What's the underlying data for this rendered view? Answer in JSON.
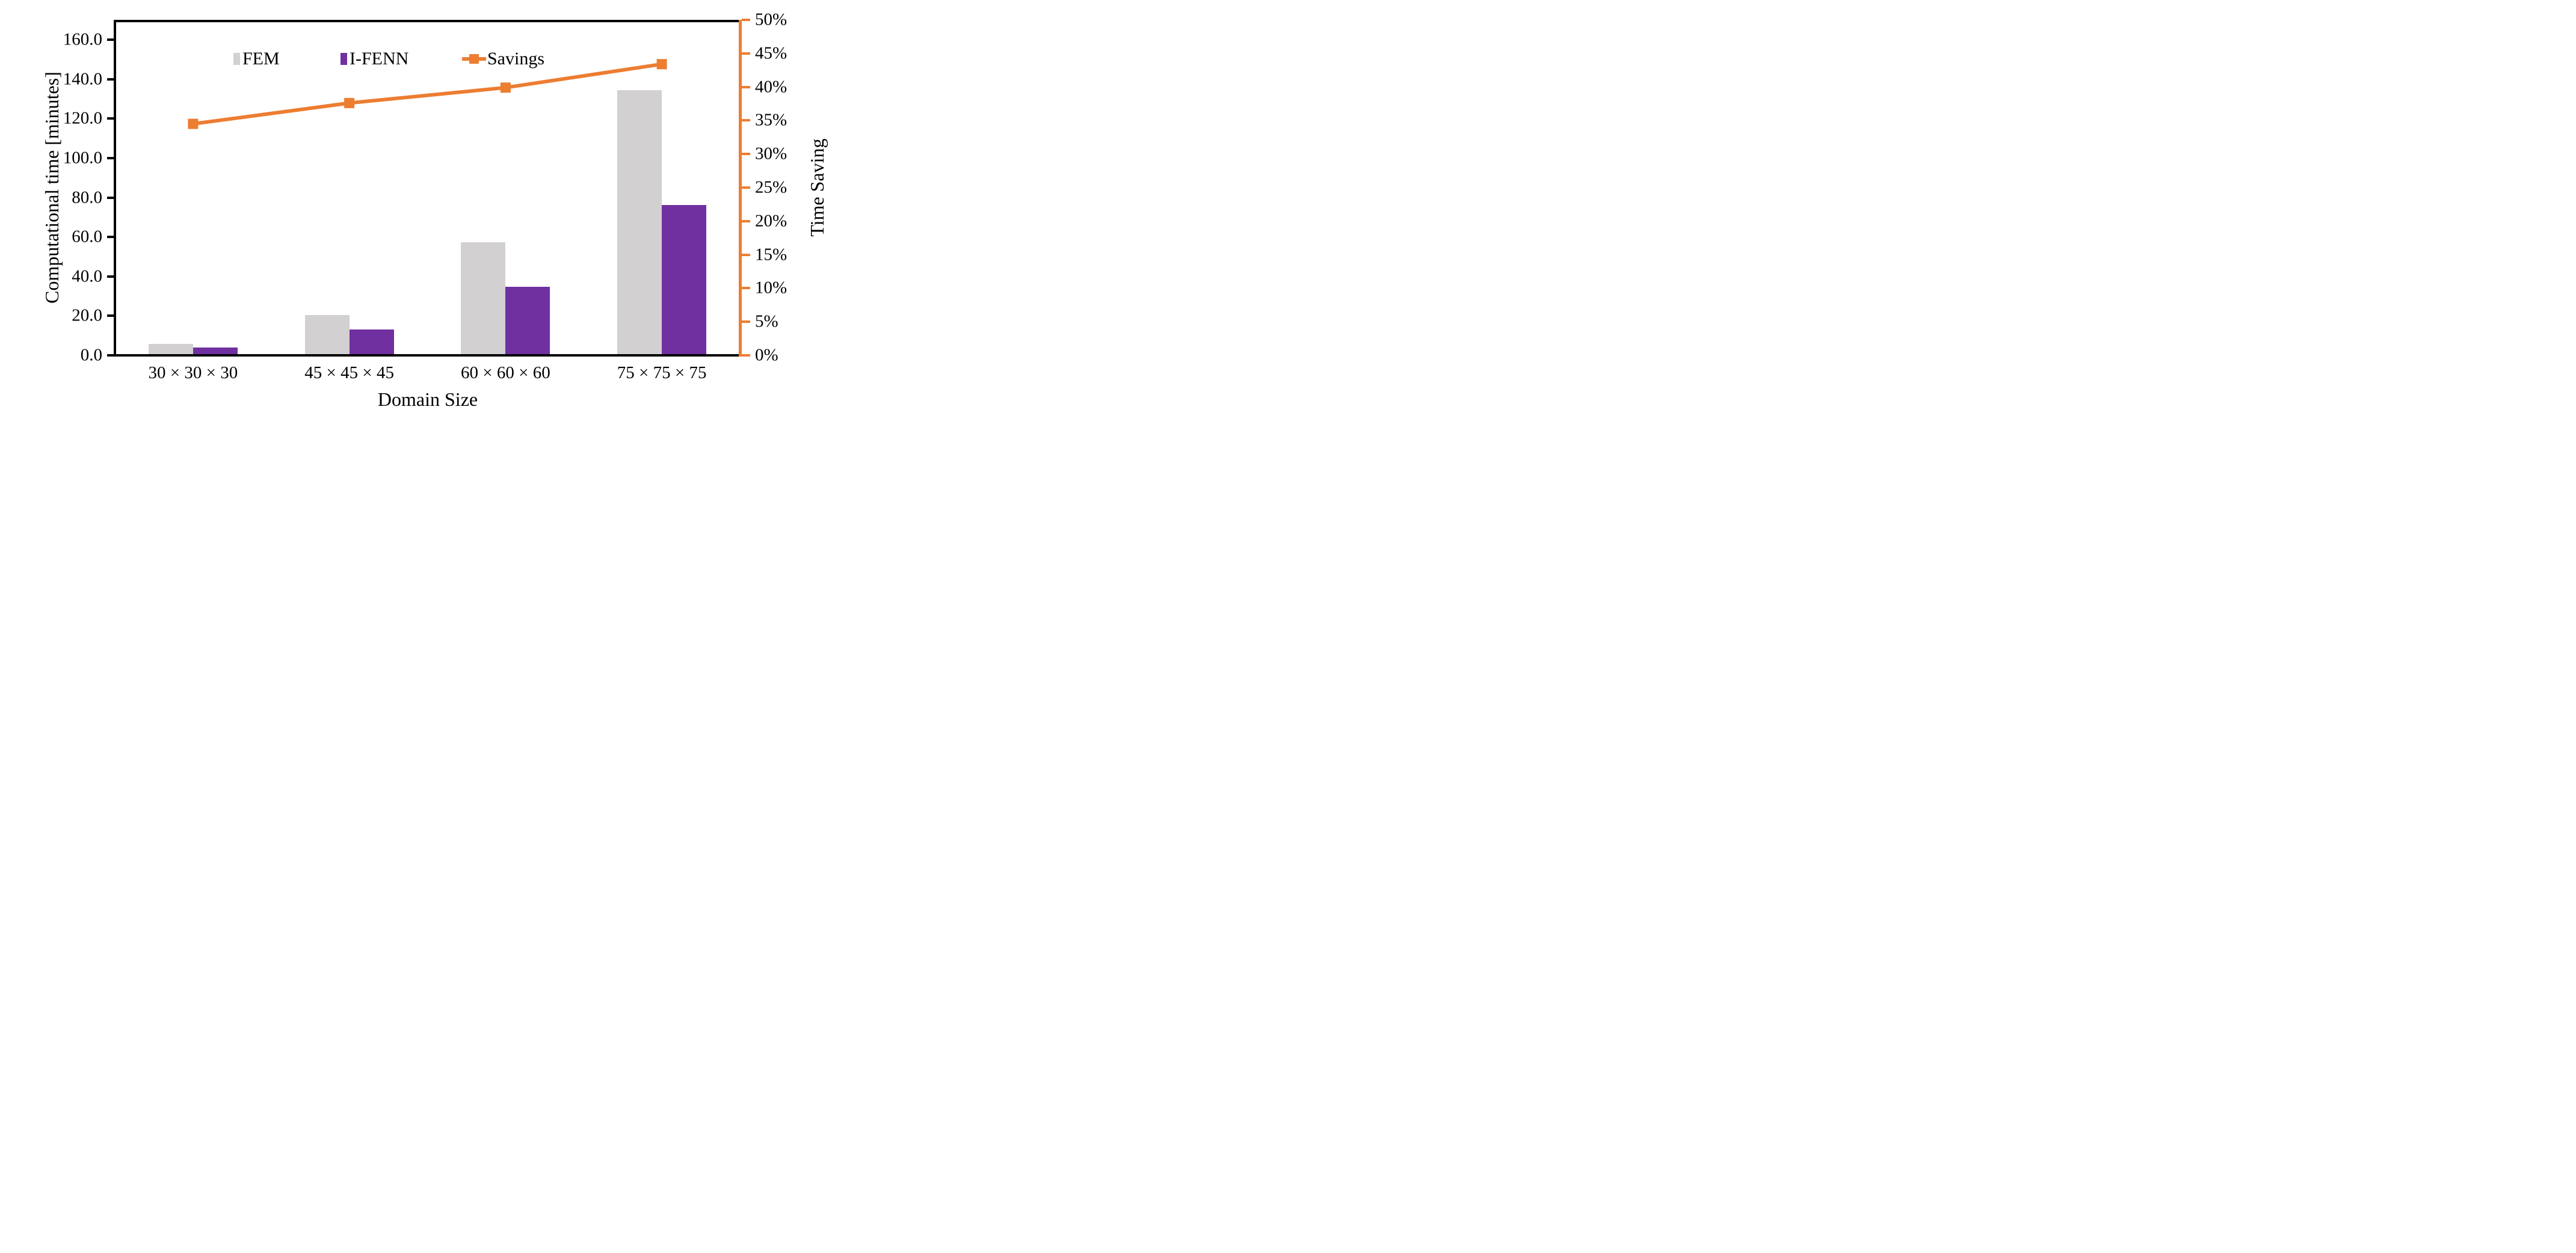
{
  "chart_data": {
    "type": "bar",
    "subtype": "clustered-bars-with-secondary-line",
    "categories": [
      "30 × 30 × 30",
      "45 × 45 × 45",
      "60 × 60 × 60",
      "75 × 75 × 75"
    ],
    "series": [
      {
        "name": "FEM",
        "type": "bar",
        "axis": "left",
        "color": "#D2D0D0",
        "values": [
          5.1,
          19.9,
          56.7,
          133.9
        ]
      },
      {
        "name": "I-FENN",
        "type": "bar",
        "axis": "left",
        "color": "#7030A0",
        "values": [
          3.3,
          12.4,
          34.1,
          75.7
        ]
      },
      {
        "name": "Savings",
        "type": "line",
        "axis": "right",
        "color": "#ED7D31",
        "marker": "square",
        "values_percent": [
          34.5,
          37.6,
          39.9,
          43.4
        ]
      }
    ],
    "left_axis": {
      "title": "Computational time [minutes]",
      "min": 0,
      "max": 160,
      "tick_step": 20,
      "tick_decimals": 1
    },
    "right_axis": {
      "title": "Time Saving",
      "min_percent": 0,
      "max_percent": 50,
      "tick_step_percent": 5,
      "color": "#ED7D31"
    },
    "x_axis": {
      "title": "Domain Size"
    },
    "legend_position": "top",
    "grid": false,
    "colors": {
      "fem_bar": "#D2D0D0",
      "ifenn_bar": "#7030A0",
      "savings_line": "#ED7D31",
      "axis": "#000000",
      "background": "#FFFFFF"
    }
  },
  "legend": {
    "items": [
      {
        "label": "FEM"
      },
      {
        "label": "I-FENN"
      },
      {
        "label": "Savings"
      }
    ]
  }
}
